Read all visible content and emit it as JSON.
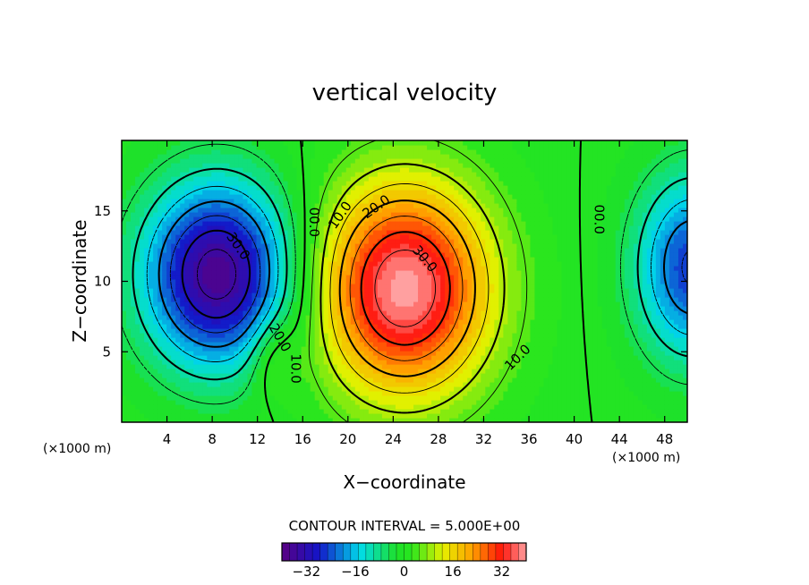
{
  "chart_data": {
    "type": "heatmap",
    "title": "vertical velocity",
    "xlabel": "X−coordinate",
    "ylabel": "Z−coordinate",
    "x_unit": "(×1000 m)",
    "xlim": [
      0,
      50
    ],
    "ylim": [
      0,
      20
    ],
    "x_ticks": [
      4,
      8,
      12,
      16,
      20,
      24,
      28,
      32,
      36,
      40,
      44,
      48
    ],
    "y_ticks": [
      5,
      10,
      15
    ],
    "contour_interval_text": "CONTOUR INTERVAL = 5.000E+00",
    "colorbar": {
      "min": -40,
      "max": 40,
      "ticks": [
        -32,
        -16,
        0,
        16,
        32
      ],
      "tick_labels": [
        "−32",
        "−16",
        "0",
        "16",
        "32"
      ]
    },
    "contour_labels": [
      {
        "text": "00.0",
        "x": 17.0,
        "z": 14.2,
        "rotate": 90
      },
      {
        "text": "10.0",
        "x": 15.4,
        "z": 3.8,
        "rotate": 90
      },
      {
        "text": "20.0",
        "x": 14.0,
        "z": 6.0,
        "rotate": 60
      },
      {
        "text": "30.0",
        "x": 10.3,
        "z": 12.5,
        "rotate": 55
      },
      {
        "text": "10.0",
        "x": 19.3,
        "z": 14.7,
        "rotate": -55
      },
      {
        "text": "20.0",
        "x": 22.5,
        "z": 15.3,
        "rotate": -35
      },
      {
        "text": "30.0",
        "x": 26.8,
        "z": 11.6,
        "rotate": 50
      },
      {
        "text": "10.0",
        "x": 35.0,
        "z": 4.6,
        "rotate": -45
      },
      {
        "text": "00.0",
        "x": 42.2,
        "z": 14.4,
        "rotate": 90
      }
    ]
  }
}
